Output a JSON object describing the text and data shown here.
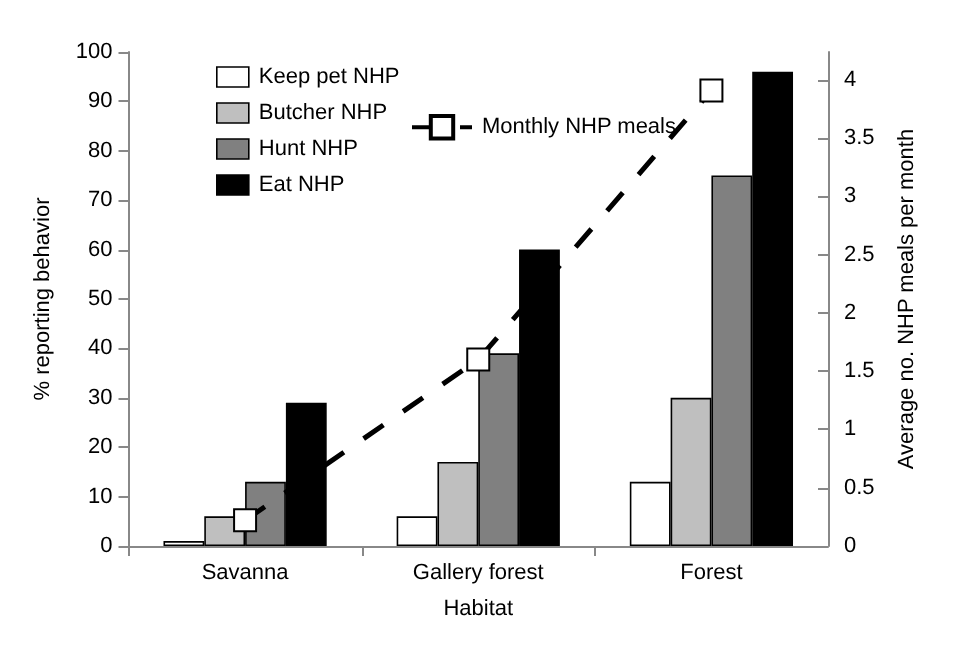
{
  "chart_data": {
    "type": "bar",
    "xlabel": "Habitat",
    "ylabel": "% reporting behavior",
    "y2label": "Average no. NHP meals per month",
    "categories": [
      "Savanna",
      "Gallery forest",
      "Forest"
    ],
    "series": [
      {
        "name": "Keep pet NHP",
        "color": "#ffffff",
        "values": [
          1,
          6,
          13
        ]
      },
      {
        "name": "Butcher NHP",
        "color": "#bfbfbf",
        "values": [
          6,
          17,
          30
        ]
      },
      {
        "name": "Hunt NHP",
        "color": "#808080",
        "values": [
          13,
          39,
          75
        ]
      },
      {
        "name": "Eat NHP",
        "color": "#000000",
        "values": [
          29,
          60,
          96
        ]
      },
      {
        "name": "Monthly NHP meals",
        "type": "line",
        "axis": "y2",
        "color": "#000000",
        "marker": "square",
        "line_style": "dashed",
        "values": [
          0.22,
          1.6,
          3.91
        ]
      }
    ],
    "ylim": [
      0,
      100
    ],
    "yticks": [
      0,
      10,
      20,
      30,
      40,
      50,
      60,
      70,
      80,
      90,
      100
    ],
    "y2lim": [
      0,
      4.24
    ],
    "y2ticks": [
      0,
      0.5,
      1,
      1.5,
      2,
      2.5,
      3,
      3.5,
      4
    ],
    "grid": false,
    "legend": "top left"
  }
}
